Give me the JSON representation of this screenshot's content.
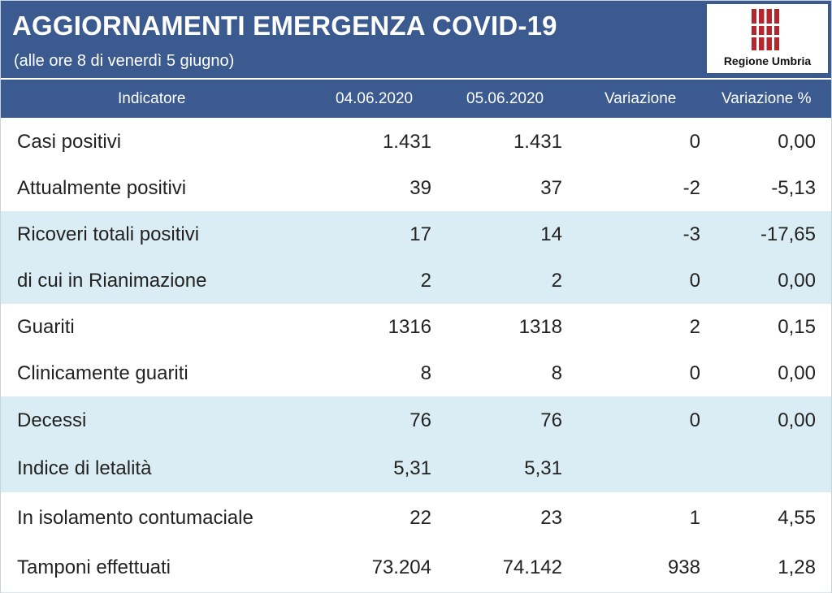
{
  "header": {
    "title": "AGGIORNAMENTI EMERGENZA COVID-19",
    "subtitle": "(alle ore 8 di venerdì 5 giugno)",
    "logo_text": "Regione Umbria",
    "logo_color": "#b3262b"
  },
  "table": {
    "columns": [
      "Indicatore",
      "04.06.2020",
      "05.06.2020",
      "Variazione",
      "Variazione %"
    ],
    "rows": [
      {
        "label": "Casi positivi",
        "d1": "1.431",
        "d2": "1.431",
        "var": "0",
        "pct": "0,00",
        "shaded": false
      },
      {
        "label": "Attualmente positivi",
        "d1": "39",
        "d2": "37",
        "var": "-2",
        "pct": "-5,13",
        "shaded": false
      },
      {
        "label": "Ricoveri totali positivi",
        "d1": "17",
        "d2": "14",
        "var": "-3",
        "pct": "-17,65",
        "shaded": true
      },
      {
        "label": "di cui in Rianimazione",
        "d1": "2",
        "d2": "2",
        "var": "0",
        "pct": "0,00",
        "shaded": true
      },
      {
        "label": "Guariti",
        "d1": "1316",
        "d2": "1318",
        "var": "2",
        "pct": "0,15",
        "shaded": false
      },
      {
        "label": "Clinicamente guariti",
        "d1": "8",
        "d2": "8",
        "var": "0",
        "pct": "0,00",
        "shaded": false
      },
      {
        "label": "Decessi",
        "d1": "76",
        "d2": "76",
        "var": "0",
        "pct": "0,00",
        "shaded": true
      },
      {
        "label": "Indice di letalità",
        "d1": "5,31",
        "d2": "5,31",
        "var": "",
        "pct": "",
        "shaded": true
      },
      {
        "label": "In isolamento contumaciale",
        "d1": "22",
        "d2": "23",
        "var": "1",
        "pct": "4,55",
        "shaded": false
      },
      {
        "label": "Tamponi effettuati",
        "d1": "73.204",
        "d2": "74.142",
        "var": "938",
        "pct": "1,28",
        "shaded": false
      }
    ]
  },
  "colors": {
    "header_bg": "#3b5a8f",
    "row_shaded": "#dbedf4",
    "row_plain": "#ffffff"
  }
}
